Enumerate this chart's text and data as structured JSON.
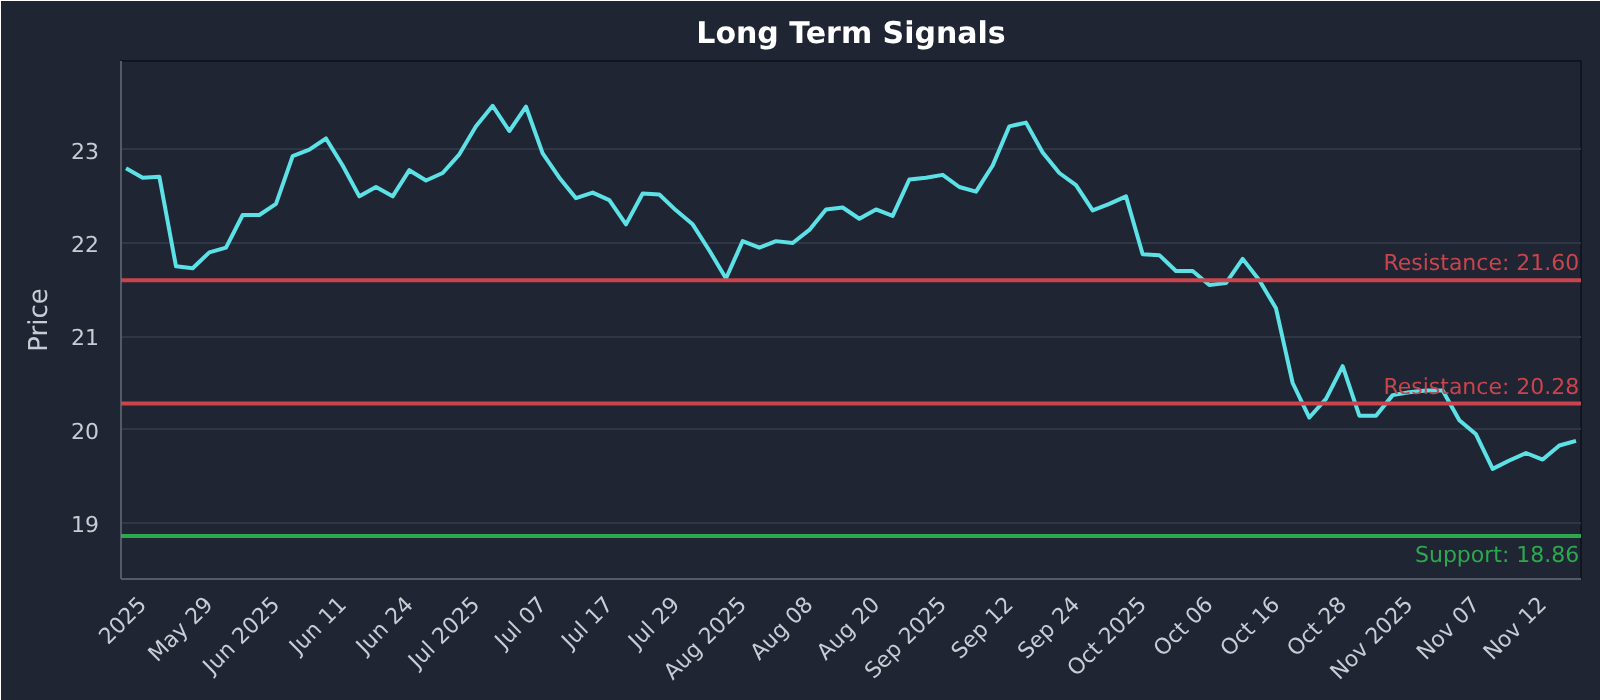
{
  "chart_data": {
    "type": "line",
    "title": "Long Term Signals",
    "ylabel": "Price",
    "categories": [
      null,
      "2025",
      null,
      null,
      null,
      "May 29",
      null,
      null,
      null,
      "Jun 2025",
      null,
      null,
      null,
      "Jun 11",
      null,
      null,
      null,
      "Jun 24",
      null,
      null,
      null,
      "Jul 2025",
      null,
      null,
      null,
      "Jul 07",
      null,
      null,
      null,
      "Jul 17",
      null,
      null,
      null,
      "Jul 29",
      null,
      null,
      null,
      "Aug 2025",
      null,
      null,
      null,
      "Aug 08",
      null,
      null,
      null,
      "Aug 20",
      null,
      null,
      null,
      "Sep 2025",
      null,
      null,
      null,
      "Sep 12",
      null,
      null,
      null,
      "Sep 24",
      null,
      null,
      null,
      "Oct 2025",
      null,
      null,
      null,
      "Oct 06",
      null,
      null,
      null,
      "Oct 16",
      null,
      null,
      null,
      "Oct 28",
      null,
      null,
      null,
      "Nov 2025",
      null,
      null,
      null,
      "Nov 07",
      null,
      null,
      null,
      "Nov 12",
      null,
      null
    ],
    "series": [
      {
        "color": "#5ce1e6",
        "values": [
          22.8,
          22.7,
          22.71,
          21.75,
          21.73,
          21.9,
          21.95,
          22.3,
          22.3,
          22.42,
          22.93,
          23.0,
          23.12,
          22.83,
          22.5,
          22.6,
          22.5,
          22.78,
          22.67,
          22.75,
          22.95,
          23.25,
          23.47,
          23.2,
          23.46,
          22.96,
          22.7,
          22.48,
          22.54,
          22.46,
          22.2,
          22.53,
          22.52,
          22.35,
          22.2,
          21.92,
          21.62,
          22.02,
          21.95,
          22.02,
          22.0,
          22.14,
          22.36,
          22.38,
          22.26,
          22.36,
          22.29,
          22.68,
          22.7,
          22.73,
          22.6,
          22.55,
          22.83,
          23.25,
          23.29,
          22.97,
          22.75,
          22.62,
          22.35,
          22.42,
          22.5,
          21.88,
          21.87,
          21.7,
          21.7,
          21.55,
          21.57,
          21.83,
          21.6,
          21.3,
          20.5,
          20.13,
          20.33,
          20.68,
          20.15,
          20.15,
          20.37,
          20.4,
          20.42,
          20.42,
          20.1,
          19.95,
          19.58,
          19.67,
          19.75,
          19.68,
          19.83,
          19.88
        ]
      }
    ],
    "ylim": [
      18.4,
      23.95
    ],
    "yticks": [
      19,
      20,
      21,
      22,
      23
    ],
    "grid": "y",
    "marker": "none",
    "line_style": "solid",
    "ref_lines": [
      {
        "axis": "y",
        "value": 21.6,
        "label": "Resistance: 21.60",
        "color": "#c9444c"
      },
      {
        "axis": "y",
        "value": 20.28,
        "label": "Resistance: 20.28",
        "color": "#c9444c"
      },
      {
        "axis": "y",
        "value": 18.86,
        "label": "Support: 18.86",
        "color": "#2ea84f"
      }
    ]
  }
}
